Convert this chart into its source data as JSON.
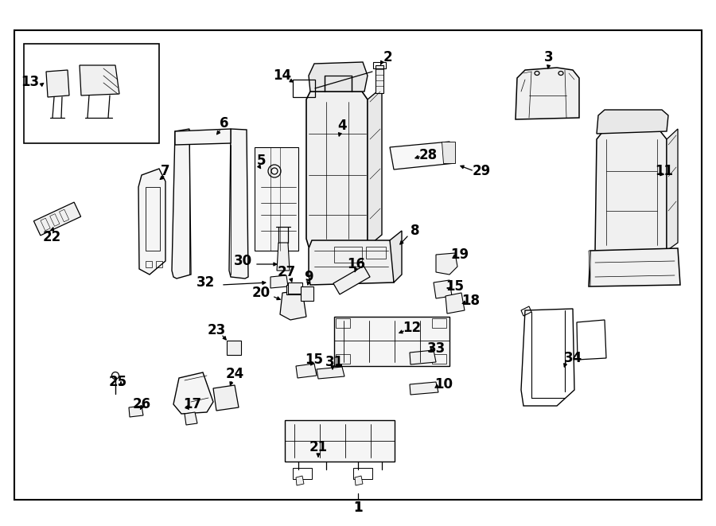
{
  "bg": "#ffffff",
  "lc": "#000000",
  "figsize": [
    9.0,
    6.61
  ],
  "dpi": 100
}
